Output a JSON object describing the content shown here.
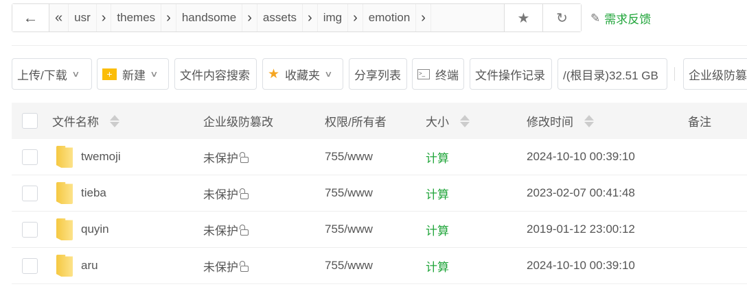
{
  "breadcrumb": {
    "items": [
      "usr",
      "themes",
      "handsome",
      "assets",
      "img",
      "emotion"
    ]
  },
  "feedback_label": "需求反馈",
  "toolbar": {
    "upload": "上传/下载",
    "new": "新建",
    "search_content": "文件内容搜索",
    "favorites": "收藏夹",
    "share_list": "分享列表",
    "terminal": "终端",
    "op_log": "文件操作记录",
    "disk": "/(根目录)32.51 GB",
    "tamper": "企业级防篡"
  },
  "table": {
    "headers": {
      "name": "文件名称",
      "protect": "企业级防篡改",
      "perm": "权限/所有者",
      "size": "大小",
      "mtime": "修改时间",
      "note": "备注"
    },
    "rows": [
      {
        "name": "twemoji",
        "protect": "未保护",
        "perm": "755/www",
        "size": "计算",
        "mtime": "2024-10-10 00:39:10"
      },
      {
        "name": "tieba",
        "protect": "未保护",
        "perm": "755/www",
        "size": "计算",
        "mtime": "2023-02-07 00:41:48"
      },
      {
        "name": "quyin",
        "protect": "未保护",
        "perm": "755/www",
        "size": "计算",
        "mtime": "2019-01-12 23:00:12"
      },
      {
        "name": "aru",
        "protect": "未保护",
        "perm": "755/www",
        "size": "计算",
        "mtime": "2024-10-10 00:39:10"
      }
    ]
  },
  "colors": {
    "accent": "#20a53a",
    "folder": "#f5c842"
  }
}
